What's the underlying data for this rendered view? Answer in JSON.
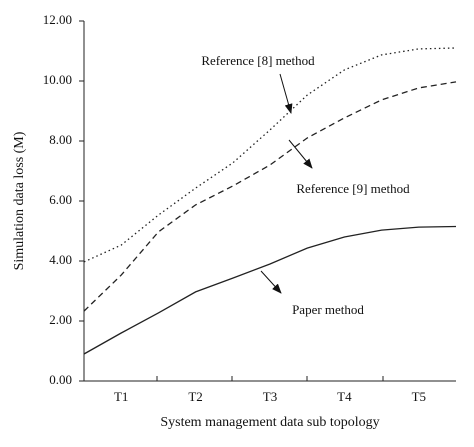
{
  "chart_data": {
    "type": "line",
    "y_label": "Simulation data loss (M)",
    "x_label": "System management data sub topology",
    "x": [
      0.5,
      1,
      1.5,
      2,
      2.5,
      3,
      3.5,
      4,
      4.5,
      5,
      5.5
    ],
    "xlim": [
      0.5,
      5.5
    ],
    "xticks": [
      {
        "value": 1,
        "label": "T1"
      },
      {
        "value": 2,
        "label": "T2"
      },
      {
        "value": 3,
        "label": "T3"
      },
      {
        "value": 4,
        "label": "T4"
      },
      {
        "value": 5,
        "label": "T5"
      }
    ],
    "ylim": [
      0,
      12
    ],
    "yticks": [
      {
        "value": 0,
        "label": "0.00"
      },
      {
        "value": 2,
        "label": "2.00"
      },
      {
        "value": 4,
        "label": "4.00"
      },
      {
        "value": 6,
        "label": "6.00"
      },
      {
        "value": 8,
        "label": "8.00"
      },
      {
        "value": 10,
        "label": "10.00"
      },
      {
        "value": 12,
        "label": "12.00"
      }
    ],
    "series": [
      {
        "name": "Reference [8] method",
        "color": "#222222",
        "dash": "1.5 3",
        "values": [
          3.97,
          4.53,
          5.53,
          6.43,
          7.27,
          8.37,
          9.53,
          10.37,
          10.87,
          11.07,
          11.1
        ]
      },
      {
        "name": "Reference [9] method",
        "color": "#222222",
        "dash": "6 4",
        "values": [
          2.33,
          3.53,
          4.97,
          5.87,
          6.5,
          7.2,
          8.1,
          8.77,
          9.37,
          9.77,
          9.97
        ]
      },
      {
        "name": "Paper method",
        "color": "#222222",
        "dash": "none",
        "values": [
          0.9,
          1.6,
          2.27,
          2.97,
          3.43,
          3.9,
          4.43,
          4.8,
          5.03,
          5.13,
          5.15
        ]
      }
    ]
  }
}
